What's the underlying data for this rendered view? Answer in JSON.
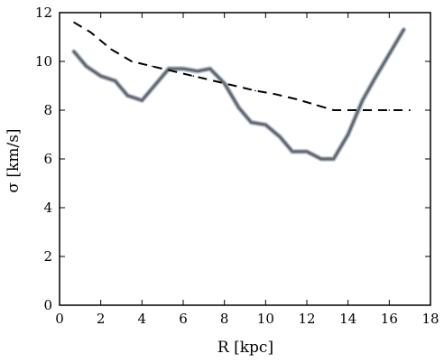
{
  "chart_data": {
    "type": "line",
    "title": "",
    "xlabel": "R [kpc]",
    "ylabel": "σ [km/s]",
    "xlim": [
      0,
      18
    ],
    "ylim": [
      0,
      12
    ],
    "xticks": [
      "0",
      "2",
      "4",
      "6",
      "8",
      "10",
      "12",
      "14",
      "16",
      "18"
    ],
    "yticks": [
      "0",
      "2",
      "4",
      "6",
      "8",
      "10",
      "12"
    ],
    "grid": false,
    "legend": "none",
    "series": [
      {
        "style": "solid",
        "color": "#6b6b6b",
        "band_color": "#b8c9dc",
        "x": [
          0.7,
          1.3,
          2.0,
          2.7,
          3.3,
          4.0,
          4.7,
          5.3,
          6.0,
          6.7,
          7.3,
          8.0,
          8.7,
          9.3,
          10.0,
          10.7,
          11.3,
          12.0,
          12.7,
          13.3,
          14.0,
          14.7,
          15.3,
          16.0,
          16.7
        ],
        "y": [
          10.4,
          9.8,
          9.4,
          9.2,
          8.6,
          8.4,
          9.1,
          9.7,
          9.7,
          9.6,
          9.7,
          9.1,
          8.1,
          7.5,
          7.4,
          6.9,
          6.3,
          6.3,
          6.0,
          6.0,
          7.0,
          8.4,
          9.3,
          10.3,
          11.3
        ]
      },
      {
        "style": "dashed",
        "color": "#000000",
        "x": [
          0.7,
          1.5,
          2.5,
          3.5,
          4.5,
          5.5,
          6.5,
          7.5,
          8.5,
          9.5,
          10.5,
          11.5,
          12.5,
          13.3,
          14.0,
          15.0,
          16.0,
          17.0
        ],
        "y": [
          11.6,
          11.2,
          10.5,
          10.0,
          9.8,
          9.6,
          9.4,
          9.2,
          9.0,
          8.8,
          8.65,
          8.45,
          8.2,
          8.0,
          8.0,
          8.0,
          8.0,
          8.0
        ]
      }
    ]
  }
}
